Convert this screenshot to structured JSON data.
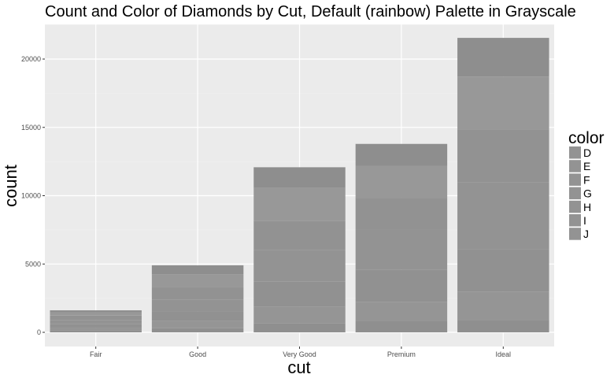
{
  "chart_data": {
    "type": "bar",
    "stacked": true,
    "title": "Count and Color of Diamonds by Cut, Default (rainbow) Palette in Grayscale",
    "xlabel": "cut",
    "ylabel": "count",
    "ylim": [
      0,
      22500
    ],
    "yticks": [
      0,
      5000,
      10000,
      15000,
      20000
    ],
    "ytick_labels": [
      "0",
      "5000",
      "10000",
      "15000",
      "20000"
    ],
    "grid": true,
    "legend_title": "color",
    "legend_position": "right",
    "categories": [
      "Fair",
      "Good",
      "Very Good",
      "Premium",
      "Ideal"
    ],
    "series": [
      {
        "name": "J",
        "color": "#8f8f8f",
        "values": [
          119,
          307,
          678,
          808,
          896
        ]
      },
      {
        "name": "I",
        "color": "#959595",
        "values": [
          175,
          522,
          1204,
          1428,
          2093
        ]
      },
      {
        "name": "H",
        "color": "#919191",
        "values": [
          303,
          702,
          1824,
          2360,
          3115
        ]
      },
      {
        "name": "G",
        "color": "#939393",
        "values": [
          314,
          871,
          2299,
          2924,
          4884
        ]
      },
      {
        "name": "F",
        "color": "#929292",
        "values": [
          312,
          909,
          2164,
          2331,
          3826
        ]
      },
      {
        "name": "E",
        "color": "#989898",
        "values": [
          224,
          933,
          2400,
          2337,
          3903
        ]
      },
      {
        "name": "D",
        "color": "#8e8e8e",
        "values": [
          163,
          662,
          1513,
          1603,
          2834
        ]
      }
    ],
    "legend": [
      "D",
      "E",
      "F",
      "G",
      "H",
      "I",
      "J"
    ],
    "colors": {
      "panel_bg": "#ebebeb",
      "grid_major": "#ffffff",
      "grid_minor": "#f2f2f2",
      "legend_key": "#939393"
    }
  }
}
